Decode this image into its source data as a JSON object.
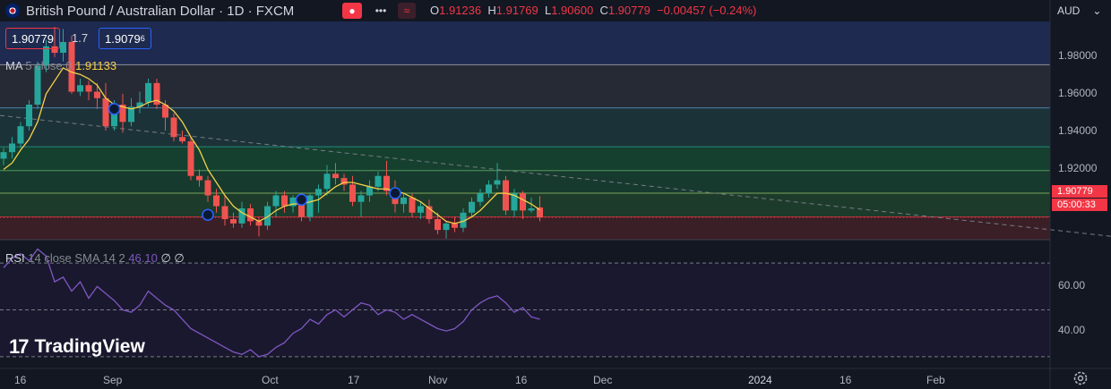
{
  "header": {
    "symbol_title": "British Pound / Australian Dollar · 1D · FXCM",
    "ohlc": {
      "o_label": "O",
      "o": "1.91236",
      "h_label": "H",
      "h": "1.91769",
      "l_label": "L",
      "l": "1.90600",
      "c_label": "C",
      "c": "1.90779",
      "change": "−0.00457 (−0.24%)"
    },
    "sell_price": "1.90779",
    "spread": "1.7",
    "buy_price_main": "1.9079",
    "buy_price_sup": "6",
    "currency": "AUD"
  },
  "ma_legend": {
    "name": "MA",
    "params": "5 close 0",
    "value": "1.91133"
  },
  "rsi_legend": {
    "name": "RSI",
    "params": "14 close SMA 14 2",
    "value": "46.10",
    "extra": "∅ ∅"
  },
  "price_axis": [
    "1.98000",
    "1.96000",
    "1.94000",
    "1.92000"
  ],
  "rsi_axis": [
    "60.00",
    "40.00"
  ],
  "time_axis": [
    "16",
    "Sep",
    "Oct",
    "17",
    "Nov",
    "16",
    "Dec",
    "2024",
    "16",
    "Feb"
  ],
  "current_price_badge": {
    "price": "1.90779",
    "countdown": "05:00:33"
  },
  "logo_text": "TradingView",
  "colors": {
    "up": "#26a69a",
    "down": "#ef5350",
    "ma": "#f5d14a",
    "rsi": "#7e57c2",
    "trend": "#787b86"
  },
  "chart_data": [
    {
      "type": "candlestick",
      "title": "British Pound / Australian Dollar · 1D · FXCM",
      "ylim": [
        1.8975,
        1.9985
      ],
      "y_ticks": [
        1.98,
        1.96,
        1.94,
        1.92
      ],
      "current_price": 1.90779,
      "x_labels": [
        "16",
        "Sep",
        "Oct",
        "17",
        "Nov",
        "16",
        "Dec",
        "2024",
        "16",
        "Feb"
      ],
      "candles": [
        {
          "o": 1.935,
          "h": 1.94,
          "l": 1.932,
          "c": 1.938
        },
        {
          "o": 1.938,
          "h": 1.945,
          "l": 1.935,
          "c": 1.942
        },
        {
          "o": 1.942,
          "h": 1.952,
          "l": 1.94,
          "c": 1.95
        },
        {
          "o": 1.95,
          "h": 1.962,
          "l": 1.948,
          "c": 1.96
        },
        {
          "o": 1.96,
          "h": 1.98,
          "l": 1.958,
          "c": 1.978
        },
        {
          "o": 1.978,
          "h": 1.99,
          "l": 1.975,
          "c": 1.987
        },
        {
          "o": 1.987,
          "h": 1.996,
          "l": 1.982,
          "c": 1.984
        },
        {
          "o": 1.984,
          "h": 1.995,
          "l": 1.98,
          "c": 1.989
        },
        {
          "o": 1.989,
          "h": 1.992,
          "l": 1.965,
          "c": 1.966
        },
        {
          "o": 1.966,
          "h": 1.972,
          "l": 1.964,
          "c": 1.969
        },
        {
          "o": 1.969,
          "h": 1.971,
          "l": 1.962,
          "c": 1.966
        },
        {
          "o": 1.966,
          "h": 1.97,
          "l": 1.958,
          "c": 1.963
        },
        {
          "o": 1.963,
          "h": 1.97,
          "l": 1.948,
          "c": 1.95
        },
        {
          "o": 1.95,
          "h": 1.962,
          "l": 1.948,
          "c": 1.96
        },
        {
          "o": 1.96,
          "h": 1.965,
          "l": 1.947,
          "c": 1.952
        },
        {
          "o": 1.952,
          "h": 1.963,
          "l": 1.95,
          "c": 1.959
        },
        {
          "o": 1.959,
          "h": 1.966,
          "l": 1.956,
          "c": 1.961
        },
        {
          "o": 1.961,
          "h": 1.972,
          "l": 1.959,
          "c": 1.97
        },
        {
          "o": 1.97,
          "h": 1.972,
          "l": 1.958,
          "c": 1.96
        },
        {
          "o": 1.96,
          "h": 1.962,
          "l": 1.948,
          "c": 1.954
        },
        {
          "o": 1.954,
          "h": 1.956,
          "l": 1.943,
          "c": 1.945
        },
        {
          "o": 1.945,
          "h": 1.948,
          "l": 1.942,
          "c": 1.943
        },
        {
          "o": 1.943,
          "h": 1.945,
          "l": 1.925,
          "c": 1.927
        },
        {
          "o": 1.927,
          "h": 1.93,
          "l": 1.922,
          "c": 1.925
        },
        {
          "o": 1.925,
          "h": 1.927,
          "l": 1.915,
          "c": 1.918
        },
        {
          "o": 1.918,
          "h": 1.921,
          "l": 1.91,
          "c": 1.913
        },
        {
          "o": 1.913,
          "h": 1.918,
          "l": 1.904,
          "c": 1.907
        },
        {
          "o": 1.907,
          "h": 1.91,
          "l": 1.903,
          "c": 1.905
        },
        {
          "o": 1.905,
          "h": 1.915,
          "l": 1.903,
          "c": 1.912
        },
        {
          "o": 1.912,
          "h": 1.914,
          "l": 1.904,
          "c": 1.906
        },
        {
          "o": 1.906,
          "h": 1.908,
          "l": 1.899,
          "c": 1.904
        },
        {
          "o": 1.904,
          "h": 1.915,
          "l": 1.902,
          "c": 1.913
        },
        {
          "o": 1.913,
          "h": 1.92,
          "l": 1.908,
          "c": 1.918
        },
        {
          "o": 1.918,
          "h": 1.92,
          "l": 1.91,
          "c": 1.913
        },
        {
          "o": 1.913,
          "h": 1.918,
          "l": 1.91,
          "c": 1.917
        },
        {
          "o": 1.917,
          "h": 1.919,
          "l": 1.906,
          "c": 1.908
        },
        {
          "o": 1.908,
          "h": 1.919,
          "l": 1.906,
          "c": 1.918
        },
        {
          "o": 1.918,
          "h": 1.923,
          "l": 1.91,
          "c": 1.921
        },
        {
          "o": 1.921,
          "h": 1.932,
          "l": 1.918,
          "c": 1.928
        },
        {
          "o": 1.928,
          "h": 1.933,
          "l": 1.923,
          "c": 1.926
        },
        {
          "o": 1.926,
          "h": 1.928,
          "l": 1.92,
          "c": 1.923
        },
        {
          "o": 1.923,
          "h": 1.927,
          "l": 1.913,
          "c": 1.915
        },
        {
          "o": 1.915,
          "h": 1.92,
          "l": 1.908,
          "c": 1.918
        },
        {
          "o": 1.918,
          "h": 1.925,
          "l": 1.915,
          "c": 1.922
        },
        {
          "o": 1.922,
          "h": 1.929,
          "l": 1.92,
          "c": 1.927
        },
        {
          "o": 1.927,
          "h": 1.934,
          "l": 1.918,
          "c": 1.92
        },
        {
          "o": 1.92,
          "h": 1.925,
          "l": 1.91,
          "c": 1.914
        },
        {
          "o": 1.914,
          "h": 1.919,
          "l": 1.91,
          "c": 1.917
        },
        {
          "o": 1.917,
          "h": 1.919,
          "l": 1.908,
          "c": 1.91
        },
        {
          "o": 1.91,
          "h": 1.915,
          "l": 1.907,
          "c": 1.913
        },
        {
          "o": 1.913,
          "h": 1.916,
          "l": 1.905,
          "c": 1.907
        },
        {
          "o": 1.907,
          "h": 1.91,
          "l": 1.9,
          "c": 1.902
        },
        {
          "o": 1.902,
          "h": 1.906,
          "l": 1.898,
          "c": 1.905
        },
        {
          "o": 1.905,
          "h": 1.908,
          "l": 1.901,
          "c": 1.903
        },
        {
          "o": 1.903,
          "h": 1.912,
          "l": 1.901,
          "c": 1.91
        },
        {
          "o": 1.91,
          "h": 1.917,
          "l": 1.908,
          "c": 1.915
        },
        {
          "o": 1.915,
          "h": 1.921,
          "l": 1.913,
          "c": 1.919
        },
        {
          "o": 1.919,
          "h": 1.925,
          "l": 1.917,
          "c": 1.923
        },
        {
          "o": 1.923,
          "h": 1.933,
          "l": 1.921,
          "c": 1.925
        },
        {
          "o": 1.925,
          "h": 1.927,
          "l": 1.909,
          "c": 1.911
        },
        {
          "o": 1.911,
          "h": 1.921,
          "l": 1.908,
          "c": 1.919
        },
        {
          "o": 1.919,
          "h": 1.92,
          "l": 1.907,
          "c": 1.911
        },
        {
          "o": 1.911,
          "h": 1.917,
          "l": 1.91,
          "c": 1.912
        },
        {
          "o": 1.9124,
          "h": 1.9177,
          "l": 1.906,
          "c": 1.9078
        }
      ],
      "ma": {
        "name": "MA 5 close 0",
        "values": [
          1.93,
          1.933,
          1.939,
          1.944,
          1.952,
          1.965,
          1.971,
          1.977,
          1.975,
          1.974,
          1.972,
          1.969,
          1.963,
          1.96,
          1.959,
          1.958,
          1.959,
          1.961,
          1.962,
          1.96,
          1.957,
          1.952,
          1.945,
          1.939,
          1.93,
          1.924,
          1.918,
          1.913,
          1.91,
          1.908,
          1.906,
          1.908,
          1.911,
          1.913,
          1.914,
          1.914,
          1.915,
          1.916,
          1.919,
          1.922,
          1.924,
          1.924,
          1.923,
          1.922,
          1.921,
          1.921,
          1.92,
          1.919,
          1.917,
          1.915,
          1.912,
          1.909,
          1.906,
          1.905,
          1.906,
          1.908,
          1.911,
          1.915,
          1.919,
          1.919,
          1.918,
          1.916,
          1.914,
          1.9113
        ]
      },
      "trend_line": {
        "from": {
          "index": 0,
          "price": 1.955
        },
        "to": {
          "index": 133,
          "price": 1.898
        }
      },
      "markers": [
        {
          "index": 13,
          "price": 1.958
        },
        {
          "index": 24,
          "price": 1.909
        },
        {
          "index": 35,
          "price": 1.916
        },
        {
          "index": 46,
          "price": 1.919
        }
      ],
      "horizontal_levels": [
        1.9785,
        1.9585,
        1.9405,
        1.9295,
        1.919,
        1.908
      ]
    },
    {
      "type": "line",
      "title": "RSI 14 close SMA 14 2",
      "ylim": [
        25,
        80
      ],
      "y_ticks": [
        60,
        40
      ],
      "bands": [
        70,
        50,
        30
      ],
      "series": [
        {
          "name": "RSI",
          "values": [
            68,
            72,
            74,
            71,
            76,
            73,
            62,
            64,
            58,
            62,
            55,
            60,
            57,
            54,
            50,
            49,
            52,
            58,
            55,
            52,
            50,
            46,
            42,
            40,
            38,
            36,
            34,
            32,
            31,
            33,
            30,
            31,
            34,
            36,
            40,
            42,
            46,
            44,
            48,
            50,
            47,
            50,
            53,
            52,
            48,
            50,
            49,
            46,
            48,
            46,
            44,
            42,
            41,
            42,
            45,
            50,
            53,
            55,
            56,
            53,
            49,
            51,
            47,
            46
          ]
        }
      ]
    }
  ]
}
